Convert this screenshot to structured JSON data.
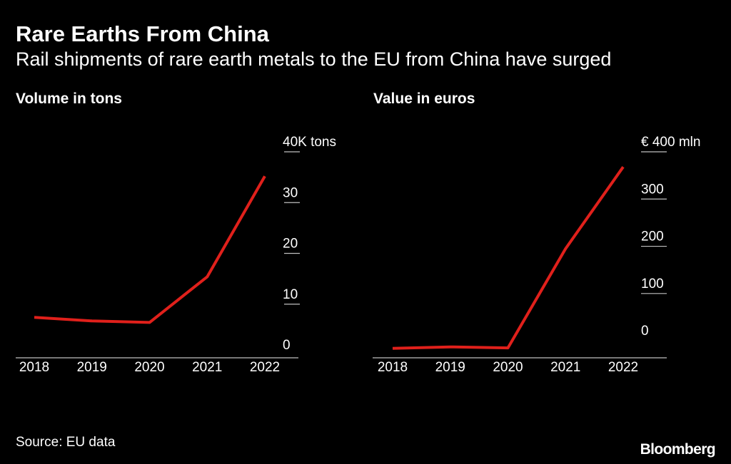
{
  "header": {
    "title": "Rare Earths From China",
    "subtitle": "Rail shipments of rare earth metals to the EU from China have surged"
  },
  "footer": {
    "source": "Source: EU data",
    "logo": "Bloomberg"
  },
  "colors": {
    "background": "#000000",
    "text": "#ffffff",
    "line": "#e0201b",
    "axis": "#bfbfbf"
  },
  "chart_data": [
    {
      "type": "line",
      "title": "Volume in tons",
      "xlabel": "",
      "ylabel": "",
      "x": [
        "2018",
        "2019",
        "2020",
        "2021",
        "2022"
      ],
      "series": [
        {
          "values": [
            7400,
            6700,
            6400,
            15400,
            35200
          ]
        }
      ],
      "ylim": [
        0,
        40000
      ],
      "y_ticks": [
        0,
        10000,
        20000,
        30000,
        40000
      ],
      "y_tick_labels": [
        "0",
        "10",
        "20",
        "30",
        "40K tons"
      ],
      "y_axis_side": "right",
      "grid": false
    },
    {
      "type": "line",
      "title": "Value in euros",
      "xlabel": "",
      "ylabel": "",
      "x": [
        "2018",
        "2019",
        "2020",
        "2021",
        "2022"
      ],
      "series": [
        {
          "values": [
            -16,
            -13,
            -15,
            195,
            368
          ]
        }
      ],
      "ylim": [
        -30,
        400
      ],
      "y_ticks": [
        0,
        100,
        200,
        300,
        400
      ],
      "y_tick_labels": [
        "0",
        "100",
        "200",
        "300",
        "€ 400  mln"
      ],
      "y_axis_side": "right",
      "grid": false
    }
  ]
}
